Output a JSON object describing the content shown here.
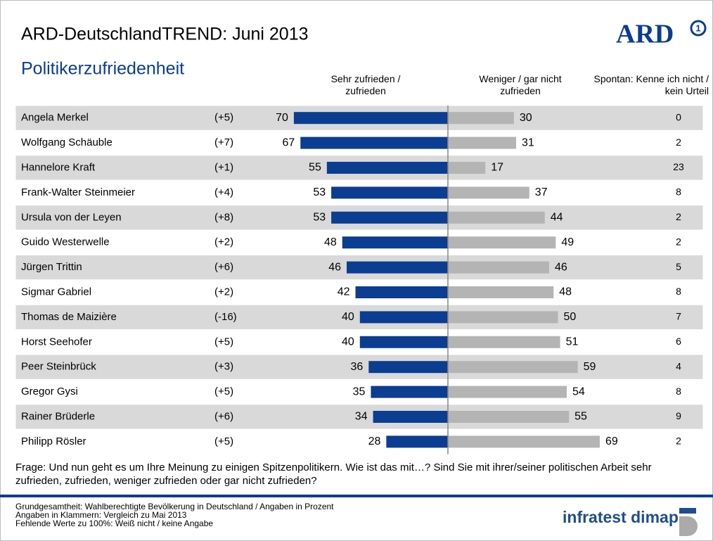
{
  "chart_data": {
    "type": "diverging_bar",
    "title": "ARD-DeutschlandTREND: Juni 2013",
    "subtitle": "Politikerzufriedenheit",
    "logo": "ARD",
    "logo_mark": "1",
    "categories": [
      "Angela Merkel",
      "Wolfgang Schäuble",
      "Hannelore Kraft",
      "Frank-Walter Steinmeier",
      "Ursula von der Leyen",
      "Guido Westerwelle",
      "Jürgen Trittin",
      "Sigmar Gabriel",
      "Thomas de Maizière",
      "Horst Seehofer",
      "Peer Steinbrück",
      "Gregor Gysi",
      "Rainer Brüderle",
      "Philipp Rösler"
    ],
    "changes": [
      "(+5)",
      "(+7)",
      "(+1)",
      "(+4)",
      "(+8)",
      "(+2)",
      "(+6)",
      "(+2)",
      "(-16)",
      "(+5)",
      "(+3)",
      "(+5)",
      "(+6)",
      "(+5)"
    ],
    "series": [
      {
        "name": "Sehr zufrieden / zufrieden",
        "color": "#0b3d91",
        "values": [
          70,
          67,
          55,
          53,
          53,
          48,
          46,
          42,
          40,
          40,
          36,
          35,
          34,
          28
        ]
      },
      {
        "name": "Weniger / gar nicht zufrieden",
        "color": "#b4b4b4",
        "values": [
          30,
          31,
          17,
          37,
          44,
          49,
          46,
          48,
          50,
          51,
          59,
          54,
          55,
          69
        ]
      }
    ],
    "third_column": {
      "name": "Spontan: Kenne ich nicht / kein Urteil",
      "values": [
        0,
        2,
        23,
        8,
        2,
        2,
        5,
        8,
        7,
        6,
        4,
        8,
        9,
        2
      ]
    },
    "question": "Frage: Und nun geht es um Ihre Meinung zu einigen Spitzenpolitikern. Wie ist das mit…? Sind Sie mit ihrer/seiner politischen Arbeit sehr zufrieden, zufrieden, weniger zufrieden oder gar nicht zufrieden?",
    "footnotes": [
      "Grundgesamtheit: Wahlberechtigte Bevölkerung in Deutschland / Angaben in Prozent",
      "Angaben in Klammern: Vergleich zu Mai 2013",
      "Fehlende Werte zu 100%: Weiß nicht / keine Angabe"
    ],
    "source": "infratest dimap"
  }
}
